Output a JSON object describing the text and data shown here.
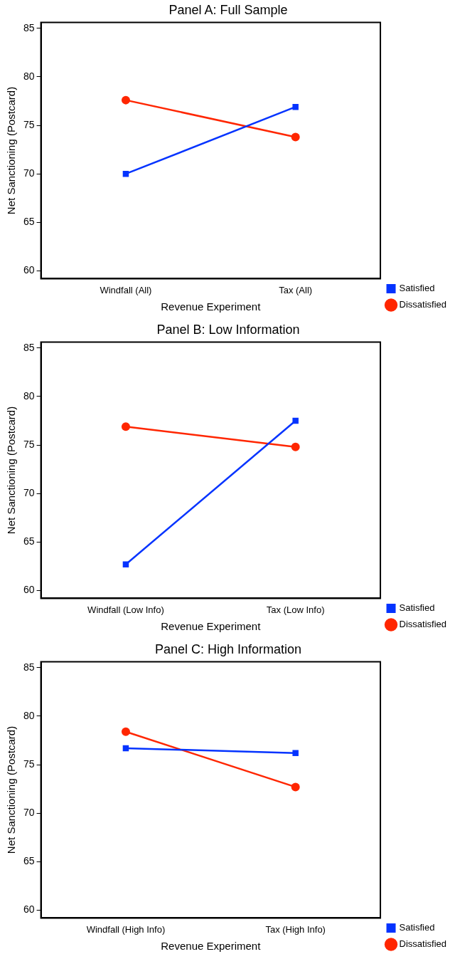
{
  "chart_data": [
    {
      "type": "line",
      "title": "Panel A: Full Sample",
      "xlabel": "Revenue Experiment",
      "ylabel": "Net Sanctioning (Postcard)",
      "categories": [
        "Windfall (All)",
        "Tax (All)"
      ],
      "series": [
        {
          "name": "Satisfied",
          "color": "#0433ff",
          "marker": "square",
          "values": [
            70.0,
            76.9
          ]
        },
        {
          "name": "Dissatisfied",
          "color": "#ff2600",
          "marker": "circle",
          "values": [
            77.6,
            73.8
          ]
        }
      ],
      "ylim": [
        59.2,
        85.6
      ],
      "yticks": [
        60,
        65,
        70,
        75,
        80,
        85
      ],
      "grid": false,
      "legend": "bottom right",
      "line_style": "solid"
    },
    {
      "type": "line",
      "title": "Panel B: Low Information",
      "xlabel": "Revenue Experiment",
      "ylabel": "Net Sanctioning (Postcard)",
      "categories": [
        "Windfall (Low Info)",
        "Tax (Low Info)"
      ],
      "series": [
        {
          "name": "Satisfied",
          "color": "#0433ff",
          "marker": "square",
          "values": [
            62.7,
            77.5
          ]
        },
        {
          "name": "Dissatisfied",
          "color": "#ff2600",
          "marker": "circle",
          "values": [
            76.9,
            74.8
          ]
        }
      ],
      "ylim": [
        59.2,
        85.6
      ],
      "yticks": [
        60,
        65,
        70,
        75,
        80,
        85
      ],
      "grid": false,
      "legend": "bottom right",
      "line_style": "solid"
    },
    {
      "type": "line",
      "title": "Panel C: High Information",
      "xlabel": "Revenue Experiment",
      "ylabel": "Net Sanctioning (Postcard)",
      "categories": [
        "Windfall (High Info)",
        "Tax (High Info)"
      ],
      "series": [
        {
          "name": "Satisfied",
          "color": "#0433ff",
          "marker": "square",
          "values": [
            76.7,
            76.2
          ]
        },
        {
          "name": "Dissatisfied",
          "color": "#ff2600",
          "marker": "circle",
          "values": [
            78.4,
            72.7
          ]
        }
      ],
      "ylim": [
        59.2,
        85.6
      ],
      "yticks": [
        60,
        65,
        70,
        75,
        80,
        85
      ],
      "grid": false,
      "legend": "bottom right",
      "line_style": "solid"
    }
  ]
}
